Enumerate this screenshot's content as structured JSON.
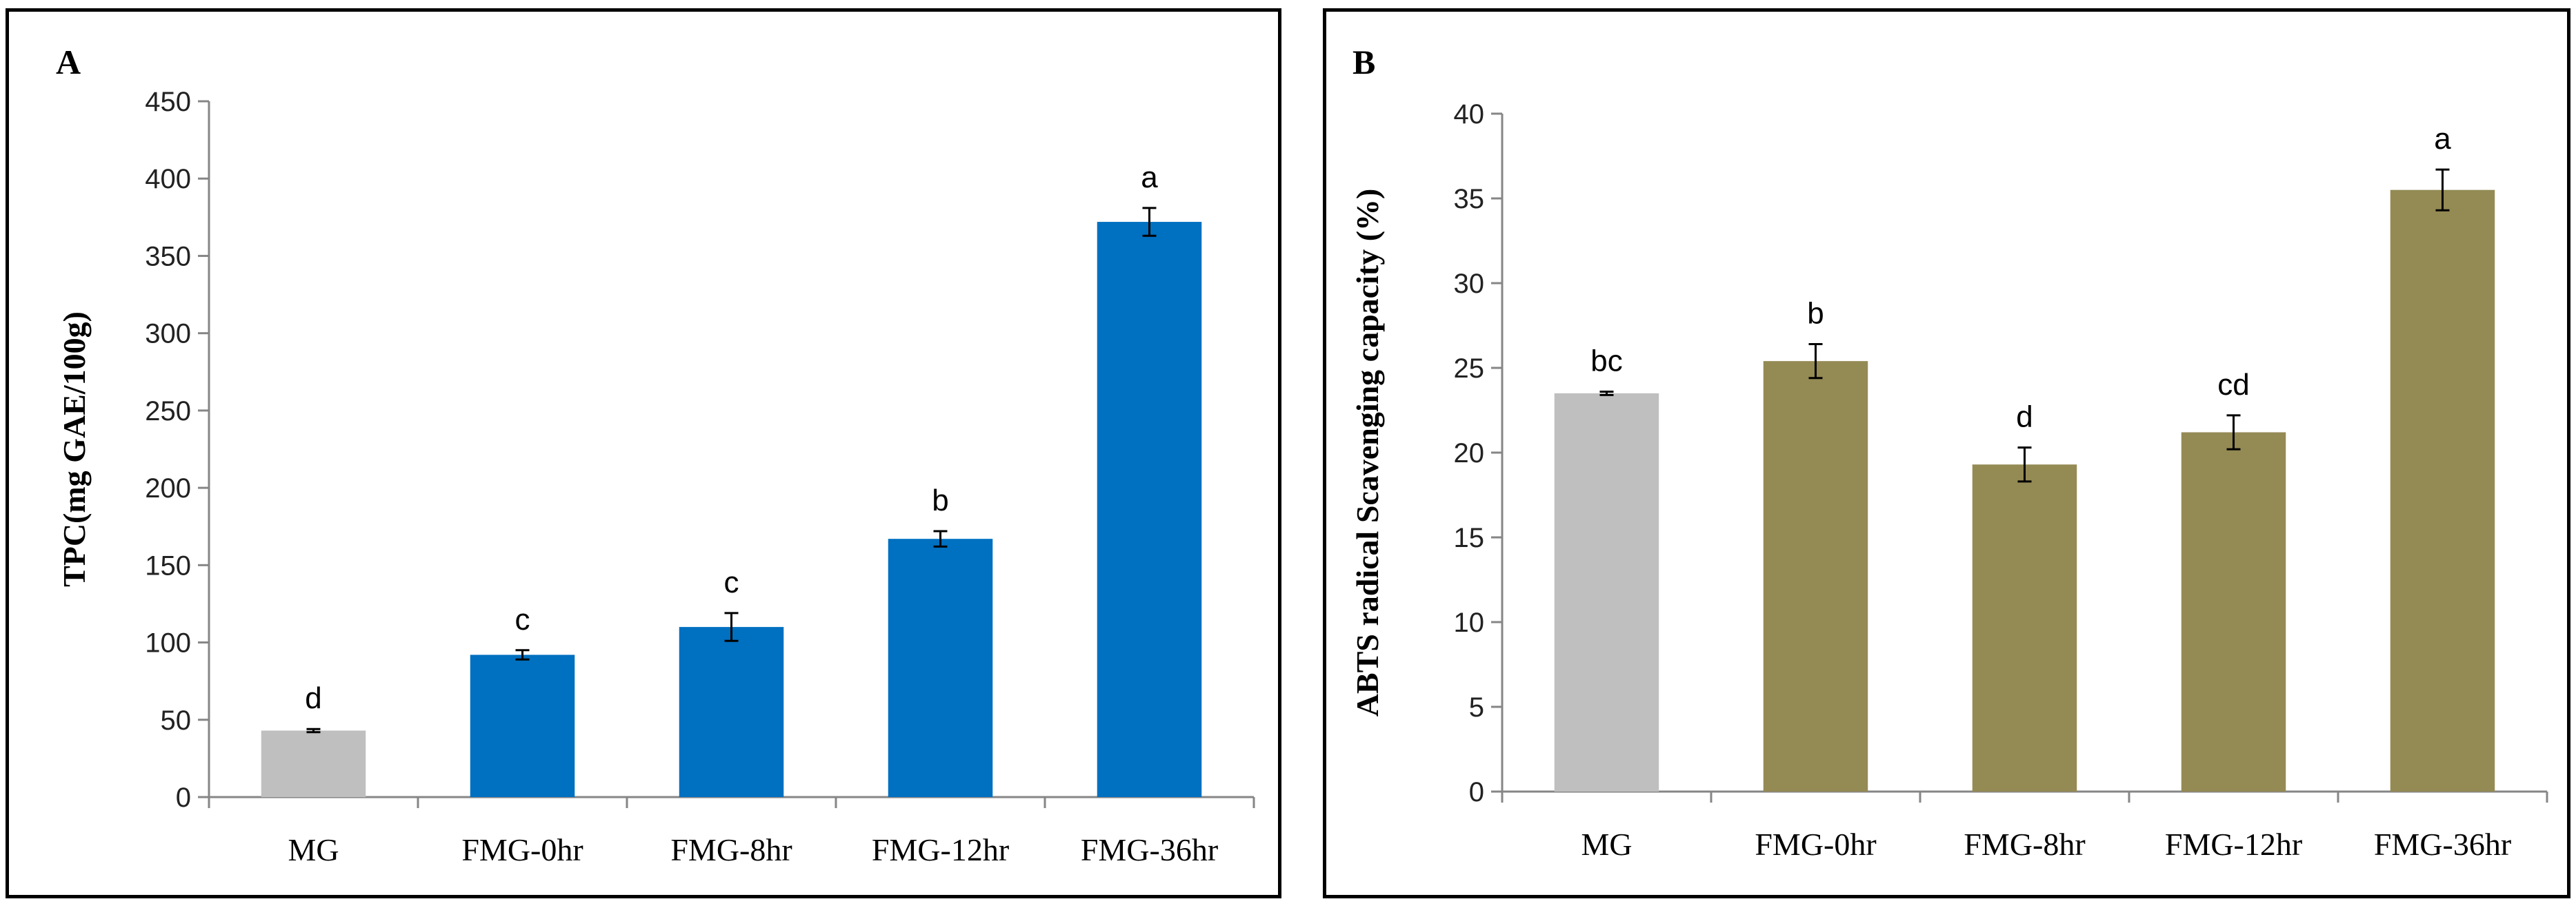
{
  "chart_data": [
    {
      "type": "bar",
      "panel_label": "A",
      "title": "",
      "xlabel": "",
      "ylabel": "TPC(mg GAE/100g)",
      "ylim": [
        0,
        450
      ],
      "yticks": [
        0,
        50,
        100,
        150,
        200,
        250,
        300,
        350,
        400,
        450
      ],
      "categories": [
        "MG",
        "FMG-0hr",
        "FMG-8hr",
        "FMG-12hr",
        "FMG-36hr"
      ],
      "values": [
        43,
        92,
        110,
        167,
        372
      ],
      "errors": [
        1,
        3,
        9,
        5,
        9
      ],
      "significance": [
        "d",
        "c",
        "c",
        "b",
        "a"
      ],
      "bar_colors": [
        "#bfbfbf",
        "#0070c0",
        "#0070c0",
        "#0070c0",
        "#0070c0"
      ],
      "grid": false
    },
    {
      "type": "bar",
      "panel_label": "B",
      "title": "",
      "xlabel": "",
      "ylabel": "ABTS radical Scavenging capacity (%)",
      "ylim": [
        0,
        40
      ],
      "yticks": [
        0,
        5,
        10,
        15,
        20,
        25,
        30,
        35,
        40
      ],
      "categories": [
        "MG",
        "FMG-0hr",
        "FMG-8hr",
        "FMG-12hr",
        "FMG-36hr"
      ],
      "values": [
        23.5,
        25.4,
        19.3,
        21.2,
        35.5
      ],
      "errors": [
        0.1,
        1.0,
        1.0,
        1.0,
        1.2
      ],
      "significance": [
        "bc",
        "b",
        "d",
        "cd",
        "a"
      ],
      "bar_colors": [
        "#bfbfbf",
        "#948a54",
        "#948a54",
        "#948a54",
        "#948a54"
      ],
      "grid": false
    }
  ]
}
